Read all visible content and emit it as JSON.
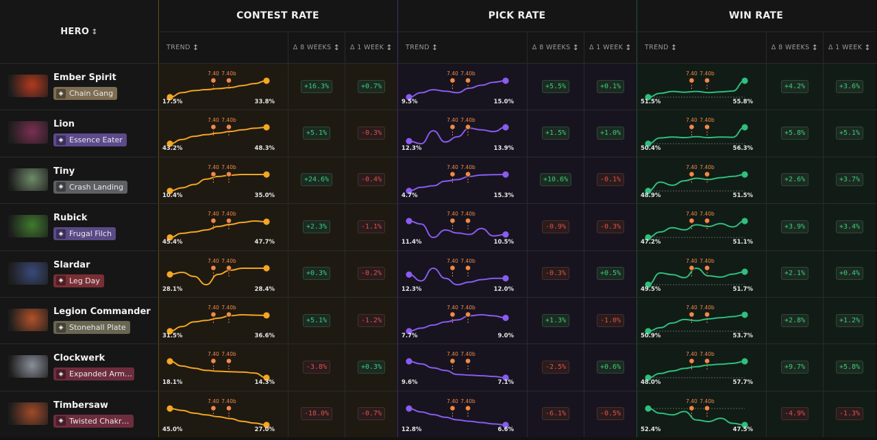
{
  "header": {
    "hero": "HERO",
    "groups": [
      {
        "key": "contest",
        "title": "CONTEST RATE",
        "trend": "TREND",
        "d8": "Δ 8 WEEKS",
        "d1": "Δ 1 WEEK"
      },
      {
        "key": "pick",
        "title": "PICK RATE",
        "trend": "TREND",
        "d8": "Δ 8 WEEKS",
        "d1": "Δ 1 WEEK"
      },
      {
        "key": "win",
        "title": "WIN RATE",
        "trend": "TREND",
        "d8": "Δ 8 WEEKS",
        "d1": "Δ 1 WEEK"
      }
    ]
  },
  "patch_labels": [
    "7.40",
    "7.40b"
  ],
  "colors": {
    "contest": "#f5a623",
    "contest_bg": "#1e1a12",
    "pick": "#8a5cf0",
    "pick_bg": "#17141f",
    "win": "#2ec07f",
    "win_bg": "#121c16",
    "patch": "#f08a4b",
    "positive": "#3ccf7a",
    "negative": "#e0504b"
  },
  "rows": [
    {
      "hero": "Ember Spirit",
      "facet": "Chain Gang",
      "facet_color": "#7d6d52",
      "facet_icon": "link-icon",
      "portrait_color": "#b23a1e",
      "contest": {
        "start": "17.5%",
        "end": "33.8%",
        "series": [
          17.5,
          22,
          24,
          25,
          26,
          27,
          29,
          31,
          33.8
        ],
        "d8": "+16.3%",
        "d1": "+0.7%"
      },
      "pick": {
        "start": "9.5%",
        "end": "15.0%",
        "series": [
          9.5,
          11,
          12,
          11.5,
          11,
          12.5,
          13.5,
          14.5,
          15.0
        ],
        "d8": "+5.5%",
        "d1": "+0.1%"
      },
      "win": {
        "start": "51.5%",
        "end": "55.8%",
        "series": [
          51.5,
          52.5,
          53,
          52.8,
          53,
          52.7,
          52.9,
          53.1,
          55.8
        ],
        "d8": "+4.2%",
        "d1": "+3.6%"
      }
    },
    {
      "hero": "Lion",
      "facet": "Essence Eater",
      "facet_color": "#5d4a8c",
      "facet_icon": "skull-icon",
      "portrait_color": "#7a2f52",
      "contest": {
        "start": "43.2%",
        "end": "48.3%",
        "series": [
          43.2,
          44.5,
          45.5,
          46,
          46.5,
          47,
          47.5,
          48,
          48.3
        ],
        "d8": "+5.1%",
        "d1": "-0.3%"
      },
      "pick": {
        "start": "12.3%",
        "end": "13.9%",
        "series": [
          12.3,
          12.0,
          13.5,
          12.2,
          12.8,
          13.8,
          13.6,
          13.4,
          13.9
        ],
        "d8": "+1.5%",
        "d1": "+1.0%"
      },
      "win": {
        "start": "50.4%",
        "end": "56.3%",
        "series": [
          50.4,
          52.5,
          52.8,
          52.6,
          52.9,
          52.6,
          52.8,
          52.7,
          56.3
        ],
        "d8": "+5.8%",
        "d1": "+5.1%"
      }
    },
    {
      "hero": "Tiny",
      "facet": "Crash Landing",
      "facet_color": "#5e6064",
      "facet_icon": "fist-icon",
      "portrait_color": "#6f8a6a",
      "contest": {
        "start": "10.4%",
        "end": "35.0%",
        "series": [
          10.4,
          15,
          20,
          28,
          32,
          34,
          35,
          35,
          35.0
        ],
        "d8": "+24.6%",
        "d1": "-0.4%"
      },
      "pick": {
        "start": "4.7%",
        "end": "15.3%",
        "series": [
          4.7,
          7,
          8,
          11,
          12,
          14,
          15,
          15.2,
          15.3
        ],
        "d8": "+10.6%",
        "d1": "-0.1%"
      },
      "win": {
        "start": "48.9%",
        "end": "51.5%",
        "series": [
          48.9,
          50.3,
          49.8,
          50.5,
          50.9,
          50.7,
          51,
          51.2,
          51.5
        ],
        "d8": "+2.6%",
        "d1": "+3.7%"
      }
    },
    {
      "hero": "Rubick",
      "facet": "Frugal Filch",
      "facet_color": "#5a4a86",
      "facet_icon": "hand-icon",
      "portrait_color": "#3f7a2e",
      "contest": {
        "start": "45.4%",
        "end": "47.7%",
        "series": [
          45.4,
          46,
          46.2,
          46.5,
          47,
          47.3,
          47.6,
          47.8,
          47.7
        ],
        "d8": "+2.3%",
        "d1": "-1.1%"
      },
      "pick": {
        "start": "11.4%",
        "end": "10.5%",
        "series": [
          11.4,
          11.2,
          10.3,
          10.8,
          10.6,
          10.5,
          10.9,
          10.4,
          10.5
        ],
        "d8": "-0.9%",
        "d1": "-0.3%"
      },
      "win": {
        "start": "47.2%",
        "end": "51.1%",
        "series": [
          47.2,
          48.5,
          49.5,
          49.0,
          50.2,
          49.8,
          50.5,
          49.7,
          51.1
        ],
        "d8": "+3.9%",
        "d1": "+3.4%"
      }
    },
    {
      "hero": "Slardar",
      "facet": "Leg Day",
      "facet_color": "#7a2f36",
      "facet_icon": "boot-icon",
      "portrait_color": "#3a4a78",
      "contest": {
        "start": "28.1%",
        "end": "28.4%",
        "series": [
          28.1,
          28.2,
          28.0,
          27.6,
          28.1,
          28.3,
          28.4,
          28.4,
          28.4
        ],
        "d8": "+0.3%",
        "d1": "-0.2%"
      },
      "pick": {
        "start": "12.3%",
        "end": "12.0%",
        "series": [
          12.3,
          11.8,
          12.8,
          12.0,
          11.5,
          11.7,
          11.9,
          12.0,
          12.0
        ],
        "d8": "-0.3%",
        "d1": "+0.5%"
      },
      "win": {
        "start": "49.5%",
        "end": "51.7%",
        "series": [
          49.5,
          51.5,
          51.2,
          50.7,
          52.3,
          51.0,
          50.8,
          51.3,
          51.7
        ],
        "d8": "+2.1%",
        "d1": "+0.4%"
      }
    },
    {
      "hero": "Legion Commander",
      "facet": "Stonehall Plate",
      "facet_color": "#6a6654",
      "facet_icon": "shield-icon",
      "portrait_color": "#b0522a",
      "contest": {
        "start": "31.5%",
        "end": "36.6%",
        "series": [
          31.5,
          33,
          34.5,
          35,
          35.7,
          36.5,
          36.8,
          36.7,
          36.6
        ],
        "d8": "+5.1%",
        "d1": "-1.2%"
      },
      "pick": {
        "start": "7.7%",
        "end": "9.0%",
        "series": [
          7.7,
          8.0,
          8.3,
          8.6,
          8.8,
          9.2,
          9.3,
          9.2,
          9.0
        ],
        "d8": "+1.3%",
        "d1": "-1.0%"
      },
      "win": {
        "start": "50.9%",
        "end": "53.7%",
        "series": [
          50.9,
          51.5,
          52.3,
          52.9,
          52.7,
          53.0,
          53.2,
          53.4,
          53.7
        ],
        "d8": "+2.8%",
        "d1": "+1.2%"
      }
    },
    {
      "hero": "Clockwerk",
      "facet": "Expanded Arm…",
      "facet_color": "#6e2d3e",
      "facet_icon": "gear-icon",
      "portrait_color": "#8a8f99",
      "contest": {
        "start": "18.1%",
        "end": "14.3%",
        "series": [
          18.1,
          17.0,
          16.5,
          16.0,
          15.8,
          15.7,
          15.6,
          15.4,
          14.3
        ],
        "d8": "-3.8%",
        "d1": "+0.3%"
      },
      "pick": {
        "start": "9.6%",
        "end": "7.1%",
        "series": [
          9.6,
          9.2,
          8.6,
          8.2,
          7.6,
          7.5,
          7.4,
          7.3,
          7.1
        ],
        "d8": "-2.5%",
        "d1": "+0.6%"
      },
      "win": {
        "start": "48.0%",
        "end": "57.7%",
        "series": [
          48.0,
          50.5,
          52.0,
          53.5,
          54.5,
          55.5,
          56.0,
          56.5,
          57.7
        ],
        "d8": "+9.7%",
        "d1": "+5.8%"
      }
    },
    {
      "hero": "Timbersaw",
      "facet": "Twisted Chakr…",
      "facet_color": "#6e2d3e",
      "facet_icon": "chakram-icon",
      "portrait_color": "#a04a2a",
      "contest": {
        "start": "45.0%",
        "end": "27.0%",
        "series": [
          45.0,
          43,
          40,
          38,
          36,
          34,
          31,
          29,
          27.0
        ],
        "d8": "-18.0%",
        "d1": "-0.7%"
      },
      "pick": {
        "start": "12.8%",
        "end": "6.6%",
        "series": [
          12.8,
          11.5,
          10.5,
          9.5,
          8.5,
          8.0,
          7.5,
          7.0,
          6.6
        ],
        "d8": "-6.1%",
        "d1": "-0.5%"
      },
      "win": {
        "start": "52.4%",
        "end": "47.5%",
        "series": [
          52.4,
          51.0,
          50.5,
          51.5,
          49.0,
          48.5,
          49.5,
          48.0,
          47.5
        ],
        "d8": "-4.9%",
        "d1": "-1.3%"
      }
    }
  ]
}
